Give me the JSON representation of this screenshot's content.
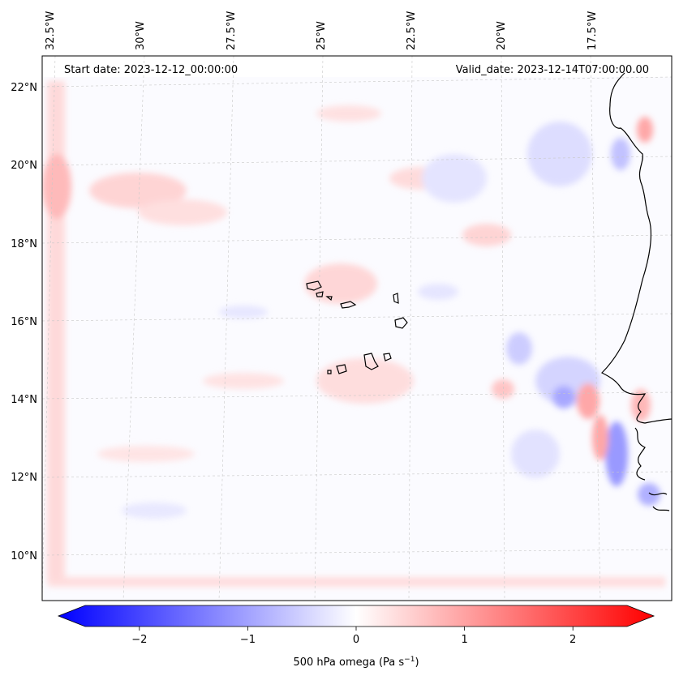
{
  "annotations": {
    "start_date": "Start date: 2023-12-12_00:00:00",
    "valid_date": "Valid_date: 2023-12-14T07:00:00.00"
  },
  "longitude_labels": [
    "32.5°W",
    "30°W",
    "27.5°W",
    "25°W",
    "22.5°W",
    "20°W",
    "17.5°W"
  ],
  "latitude_labels": [
    "22°N",
    "20°N",
    "18°N",
    "16°N",
    "14°N",
    "12°N",
    "10°N"
  ],
  "colorbar": {
    "ticks": [
      {
        "value": -2,
        "label": "−2"
      },
      {
        "value": -1,
        "label": "−1"
      },
      {
        "value": 0,
        "label": "0"
      },
      {
        "value": 1,
        "label": "1"
      },
      {
        "value": 2,
        "label": "2"
      }
    ],
    "range": [
      -2.5,
      2.5
    ],
    "colormap": "bwr",
    "label_main": "500 hPa omega (Pa s",
    "label_sup": "−1",
    "label_close": ")"
  },
  "colors": {
    "negative": "#0000ff",
    "neutral": "#ffffff",
    "positive": "#ff0000",
    "coastline": "#000000"
  }
}
